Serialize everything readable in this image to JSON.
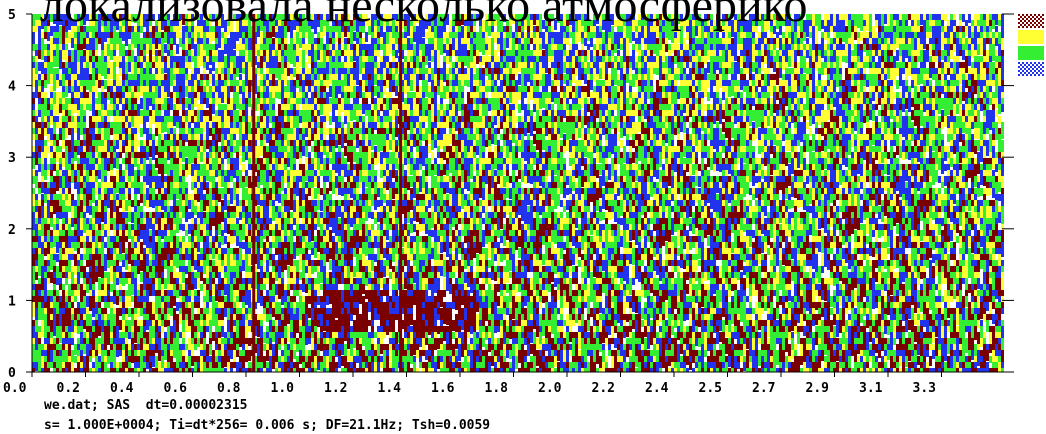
{
  "overlay_text": "локализовала несколько атмосферико",
  "chart_data": {
    "type": "heatmap",
    "title": "",
    "xlabel": "",
    "ylabel": "",
    "xlim": [
      0.0,
      3.5
    ],
    "ylim": [
      0,
      5
    ],
    "x_tick_labels": [
      "0.0",
      "0.2",
      "0.4",
      "0.6",
      "0.8",
      "1.0",
      "1.2",
      "1.4",
      "1.6",
      "1.8",
      "2.0",
      "2.2",
      "2.4",
      "2.5",
      "2.7",
      "2.9",
      "3.1",
      "3.3"
    ],
    "y_ticks": [
      0,
      1,
      2,
      3,
      4,
      5
    ],
    "y_tick_labels": [
      "0",
      "1",
      "2",
      "3",
      "4",
      "5"
    ],
    "color_levels": [
      {
        "color": "#7a0000",
        "pattern": "checkered"
      },
      {
        "color": "#ffff33"
      },
      {
        "color": "#33ee33"
      },
      {
        "color": "#2233ee",
        "pattern": "checkered"
      }
    ],
    "vertical_lines_x": [
      0.8,
      1.33
    ],
    "low_frequency_band": {
      "x_range": [
        1.0,
        1.6
      ],
      "y_range": [
        0.6,
        1.2
      ]
    }
  },
  "info": {
    "line1": "we.dat; SAS  dt=0.00002315",
    "line2": "s= 1.000E+0004; Ti=dt*256= 0.006 s; DF=21.1Hz; Tsh=0.0059"
  }
}
